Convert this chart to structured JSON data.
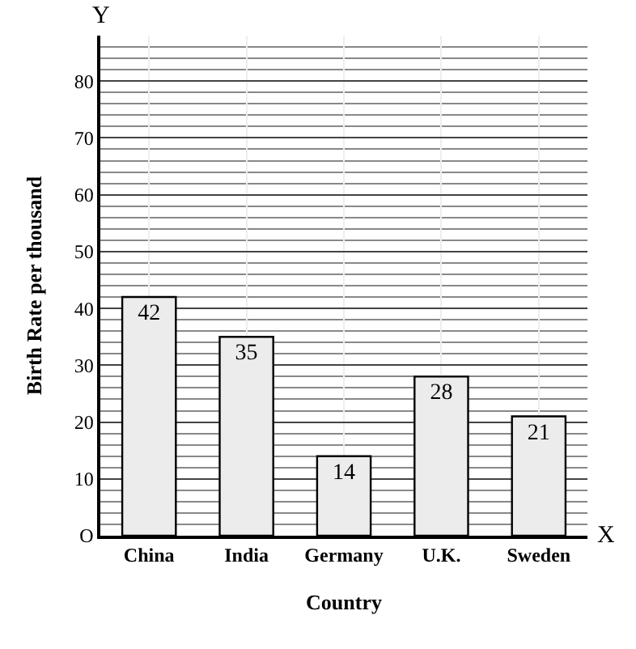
{
  "chart_data": {
    "type": "bar",
    "xlabel": "Country",
    "ylabel": "Birth Rate per thousand",
    "categories": [
      "China",
      "India",
      "Germany",
      "U.K.",
      "Sweden"
    ],
    "values": [
      42,
      35,
      14,
      28,
      21
    ],
    "color": "#ececec",
    "data_labels": true,
    "ylim": [
      0,
      88
    ],
    "yticks": [
      {
        "value": 0,
        "label": "O"
      },
      10,
      20,
      30,
      40,
      50,
      60,
      70,
      80
    ],
    "grid": true,
    "annotations": [
      "Y",
      "X"
    ]
  }
}
